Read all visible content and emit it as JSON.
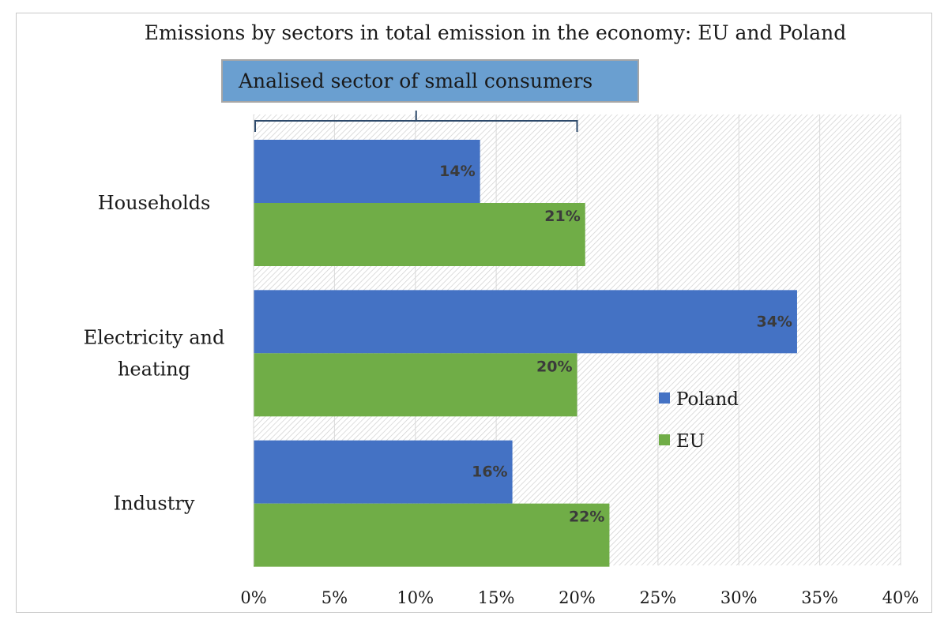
{
  "chart_data": {
    "type": "bar",
    "orientation": "horizontal",
    "title": "Emissions by sectors in total emission in the economy: EU and Poland",
    "categories": [
      "Households",
      "Electricity and heating",
      "Industry"
    ],
    "category_lines": [
      [
        "Households"
      ],
      [
        "Electricity and",
        "heating"
      ],
      [
        "Industry"
      ]
    ],
    "series": [
      {
        "name": "Poland",
        "color": "#4472c4",
        "values": [
          14,
          33.6,
          16
        ],
        "labels": [
          "14%",
          "34%",
          "16%"
        ]
      },
      {
        "name": "EU",
        "color": "#70ad47",
        "values": [
          20.5,
          20,
          22
        ],
        "labels": [
          "21%",
          "20%",
          "22%"
        ]
      }
    ],
    "xlim": [
      0,
      40
    ],
    "xticks": [
      0,
      5,
      10,
      15,
      20,
      25,
      30,
      35,
      40
    ],
    "xtick_labels": [
      "0%",
      "5%",
      "10%",
      "15%",
      "20%",
      "25%",
      "30%",
      "35%",
      "40%"
    ],
    "xlabel": "",
    "ylabel": "",
    "grid": true,
    "legend": {
      "position": "center-right",
      "entries": [
        "Poland",
        "EU"
      ]
    },
    "annotation": {
      "text": "Analised sector of small consumers",
      "bracket_range": [
        0,
        20
      ],
      "fill": "#6a9fd0"
    }
  }
}
